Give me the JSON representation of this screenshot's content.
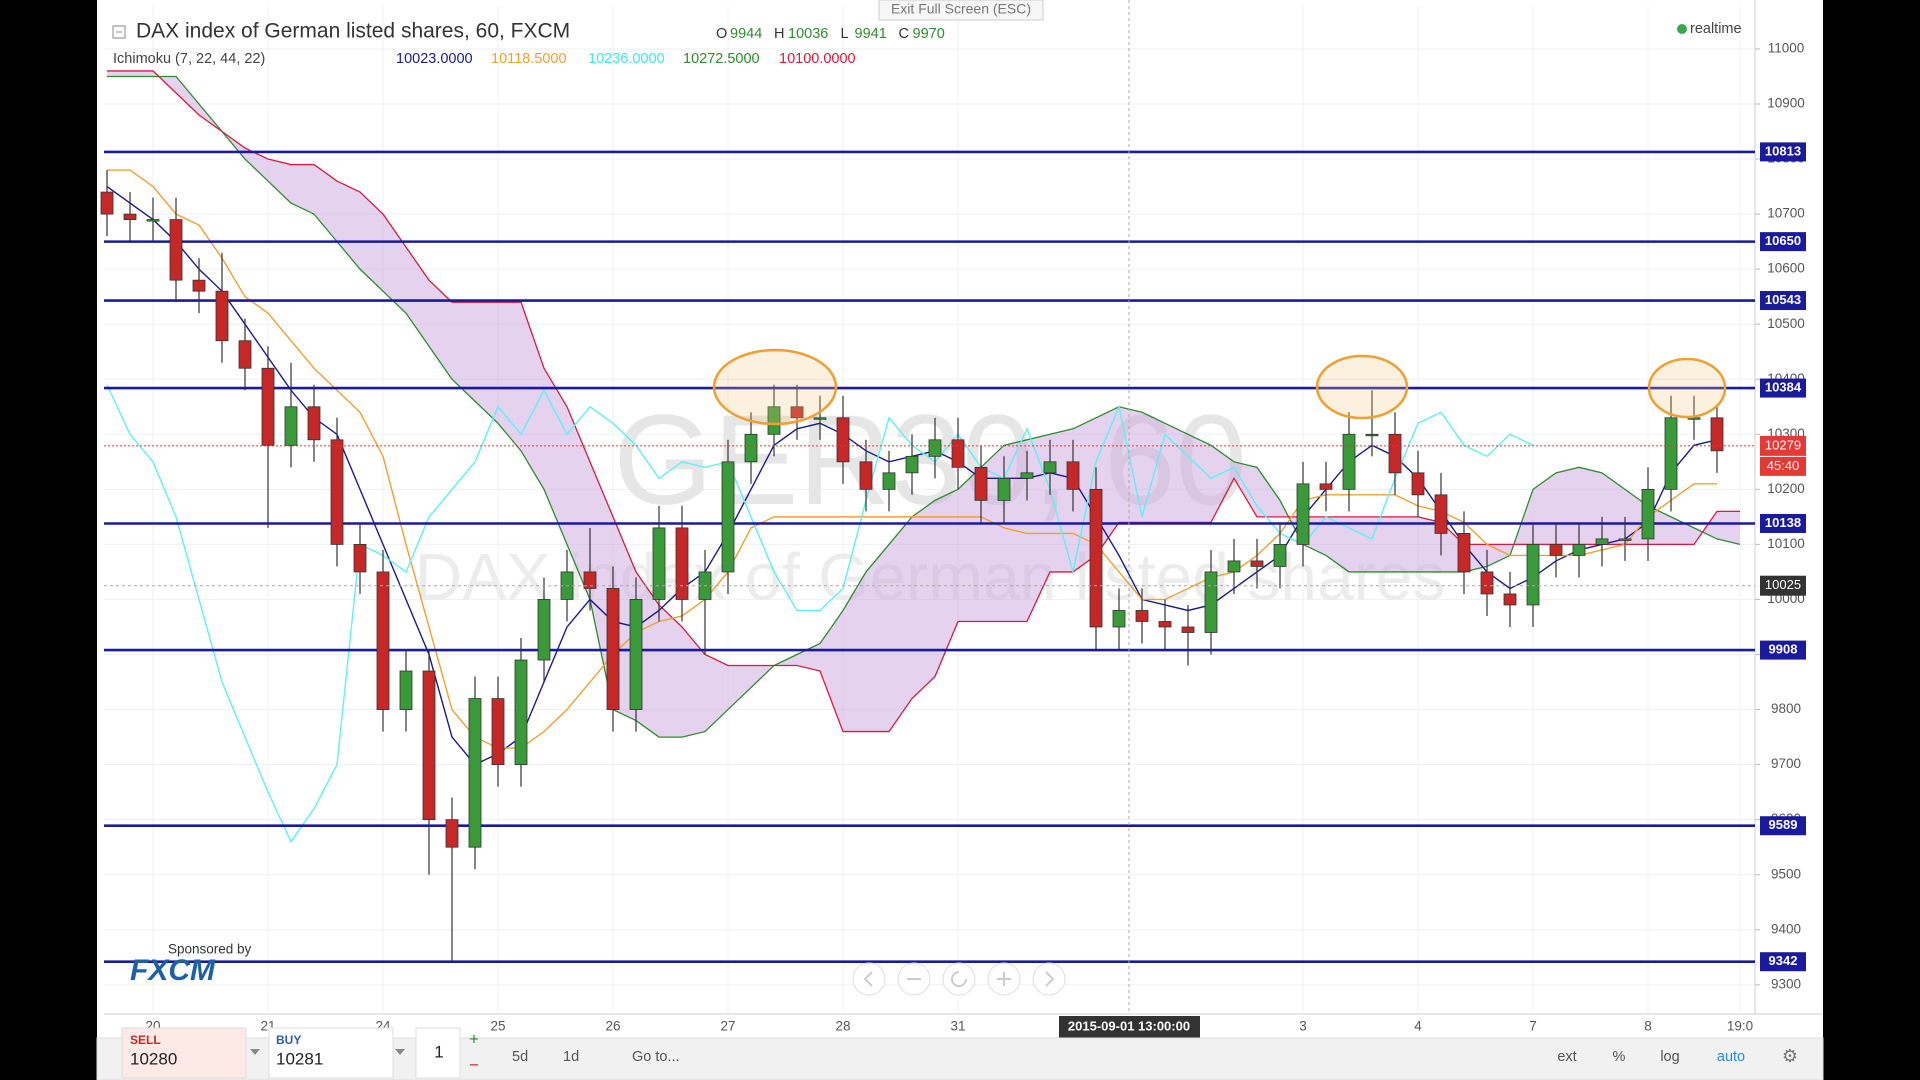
{
  "header": {
    "title": "DAX index of German listed shares, 60, FXCM",
    "exit_full_screen": "Exit Full Screen (ESC)",
    "realtime": "realtime",
    "ohlc": [
      {
        "key": "O",
        "value": "9944"
      },
      {
        "key": "H",
        "value": "10036"
      },
      {
        "key": "L",
        "value": "9941"
      },
      {
        "key": "C",
        "value": "9970"
      }
    ],
    "indicator": "Ichimoku (7, 22, 44, 22)",
    "indicator_values": [
      {
        "value": "10023.0000",
        "color": "#1a1a8c"
      },
      {
        "value": "10118.5000",
        "color": "#f0a030"
      },
      {
        "value": "10236.0000",
        "color": "#3ee8f0"
      },
      {
        "value": "10272.5000",
        "color": "#2e8b2e"
      },
      {
        "value": "10100.0000",
        "color": "#d81b3c"
      }
    ]
  },
  "watermark": {
    "symbol": "GER30, 60",
    "description": "DAX index of German listed shares"
  },
  "sponsor": {
    "label": "Sponsored by",
    "brand": "FXCM"
  },
  "toolbar": {
    "sell_label": "SELL",
    "sell_price": "10280",
    "buy_label": "BUY",
    "buy_price": "10281",
    "quantity": "1",
    "plus": "+",
    "minus": "−",
    "ranges": [
      "5d",
      "1d",
      "Go to..."
    ],
    "options": [
      "ext",
      "%",
      "log",
      "auto"
    ]
  },
  "chart_data": {
    "type": "candlestick",
    "categories": [
      null,
      null,
      "20",
      null,
      null,
      null,
      null,
      "21",
      null,
      null,
      null,
      null,
      "24",
      null,
      null,
      null,
      null,
      "25",
      null,
      null,
      null,
      null,
      "26",
      null,
      null,
      null,
      null,
      "27",
      null,
      null,
      null,
      null,
      "28",
      null,
      null,
      null,
      null,
      "31",
      null,
      null,
      null,
      null,
      null,
      null,
      null,
      null,
      null,
      null,
      null,
      null,
      null,
      null,
      "3",
      null,
      null,
      null,
      null,
      "4",
      null,
      null,
      null,
      null,
      "7",
      null,
      null,
      null,
      null,
      "8",
      null,
      null,
      null,
      "19:0"
    ],
    "open": [
      10740,
      10700,
      10690,
      10690,
      10580,
      10560,
      10470,
      10420,
      10280,
      10350,
      10290,
      10100,
      10050,
      9800,
      9870,
      9600,
      9550,
      9820,
      9700,
      9890,
      10000,
      10050,
      10020,
      9800,
      10000,
      10130,
      10000,
      10050,
      10250,
      10300,
      10350,
      10330,
      10330,
      10250,
      10200,
      10230,
      10260,
      10290,
      10240,
      10180,
      10220,
      10230,
      10250,
      10200,
      9950,
      9980,
      9960,
      9950,
      9940,
      10050,
      10070,
      10060,
      10100,
      10210,
      10200,
      10300,
      10300,
      10230,
      10190,
      10120,
      10050,
      10010,
      9990,
      10100,
      10080,
      10100,
      10110,
      10110,
      10200,
      10330,
      10330,
      null
    ],
    "high": [
      10780,
      10740,
      10730,
      10730,
      10620,
      10630,
      10510,
      10460,
      10430,
      10390,
      10330,
      10140,
      10090,
      9910,
      9910,
      9640,
      9860,
      9860,
      9930,
      10040,
      10090,
      10130,
      10060,
      10040,
      10170,
      10170,
      10090,
      10290,
      10340,
      10390,
      10390,
      10370,
      10370,
      10290,
      10270,
      10300,
      10330,
      10330,
      10280,
      10260,
      10270,
      10290,
      10290,
      10240,
      10020,
      10020,
      10000,
      9990,
      10090,
      10110,
      10110,
      10140,
      10250,
      10250,
      10340,
      10380,
      10340,
      10270,
      10230,
      10160,
      10090,
      10050,
      10140,
      10140,
      10140,
      10150,
      10150,
      10240,
      10370,
      10370,
      10350,
      null
    ],
    "low": [
      10660,
      10650,
      10650,
      10540,
      10520,
      10430,
      10380,
      10130,
      10240,
      10250,
      10060,
      10010,
      9760,
      9760,
      9500,
      9342,
      9510,
      9660,
      9660,
      9850,
      9960,
      9980,
      9760,
      9760,
      9960,
      9960,
      9900,
      10010,
      10210,
      10260,
      10290,
      10290,
      10210,
      10160,
      10160,
      10190,
      10220,
      10200,
      10140,
      10140,
      10180,
      10190,
      10160,
      9910,
      9910,
      9920,
      9910,
      9880,
      9900,
      10010,
      10020,
      10020,
      10060,
      10160,
      10160,
      10260,
      10190,
      10150,
      10080,
      10010,
      9970,
      9950,
      9950,
      10040,
      10040,
      10060,
      10070,
      10070,
      10160,
      10290,
      10230,
      null
    ],
    "close": [
      10700,
      10690,
      10690,
      10580,
      10560,
      10470,
      10420,
      10280,
      10350,
      10290,
      10100,
      10050,
      9800,
      9870,
      9600,
      9550,
      9820,
      9700,
      9890,
      10000,
      10050,
      10020,
      9800,
      10000,
      10130,
      10000,
      10050,
      10250,
      10300,
      10350,
      10330,
      10330,
      10250,
      10200,
      10230,
      10260,
      10290,
      10240,
      10180,
      10220,
      10230,
      10250,
      10200,
      9950,
      9980,
      9960,
      9950,
      9940,
      10050,
      10070,
      10060,
      10100,
      10210,
      10200,
      10300,
      10300,
      10230,
      10190,
      10120,
      10050,
      10010,
      9990,
      10100,
      10080,
      10100,
      10110,
      10110,
      10200,
      10330,
      10330,
      10270,
      null
    ],
    "up_color": "#3a9a3a",
    "down_color": "#c62828",
    "cloud": {
      "color": "#c9a6dd",
      "span_a": {
        "color": "#2e8b2e",
        "values": [
          10950,
          10950,
          10950,
          10950,
          10900,
          10850,
          10800,
          10760,
          10720,
          10700,
          10650,
          10600,
          10560,
          10520,
          10460,
          10400,
          10360,
          10320,
          10270,
          10200,
          10100,
          10000,
          9800,
          9780,
          9750,
          9750,
          9760,
          9800,
          9840,
          9880,
          9900,
          9920,
          9980,
          10050,
          10100,
          10150,
          10180,
          10200,
          10240,
          10280,
          10290,
          10300,
          10310,
          10330,
          10350,
          10340,
          10320,
          10300,
          10280,
          10250,
          10240,
          10180,
          10100,
          10080,
          10050,
          10050,
          10050,
          10050,
          10050,
          10050,
          10060,
          10080,
          10200,
          10230,
          10240,
          10230,
          10200,
          10170,
          10150,
          10130,
          10110,
          10100
        ]
      },
      "span_b": {
        "color": "#d81b3c",
        "values": [
          10960,
          10960,
          10960,
          10920,
          10880,
          10850,
          10820,
          10800,
          10790,
          10790,
          10760,
          10740,
          10700,
          10640,
          10580,
          10540,
          10540,
          10540,
          10540,
          10420,
          10350,
          10250,
          10150,
          10050,
          9990,
          9950,
          9900,
          9880,
          9880,
          9880,
          9880,
          9870,
          9760,
          9760,
          9760,
          9820,
          9860,
          9960,
          9960,
          9960,
          9960,
          10050,
          10050,
          10080,
          10140,
          10140,
          10140,
          10140,
          10140,
          10220,
          10150,
          10150,
          10150,
          10150,
          10150,
          10150,
          10150,
          10150,
          10140,
          10100,
          10100,
          10100,
          10100,
          10100,
          10100,
          10100,
          10100,
          10100,
          10100,
          10100,
          10160,
          10160
        ]
      }
    },
    "series": [
      {
        "color": "#1a1a8c",
        "values": [
          10750,
          10720,
          10690,
          10650,
          10600,
          10560,
          10500,
          10440,
          10380,
          10330,
          10300,
          10200,
          10100,
          10000,
          9900,
          9750,
          9700,
          9720,
          9750,
          9850,
          9950,
          10000,
          9960,
          9950,
          9980,
          10020,
          10050,
          10120,
          10200,
          10280,
          10310,
          10320,
          10300,
          10270,
          10250,
          10260,
          10270,
          10250,
          10220,
          10220,
          10220,
          10230,
          10220,
          10150,
          10080,
          10000,
          9990,
          9980,
          9990,
          10020,
          10050,
          10080,
          10150,
          10200,
          10250,
          10280,
          10260,
          10220,
          10160,
          10100,
          10050,
          10020,
          10040,
          10070,
          10090,
          10100,
          10110,
          10140,
          10230,
          10280,
          10290,
          null
        ]
      },
      {
        "color": "#f0a030",
        "values": [
          10780,
          10780,
          10750,
          10700,
          10680,
          10620,
          10550,
          10520,
          10470,
          10420,
          10380,
          10340,
          10260,
          10100,
          9950,
          9800,
          9750,
          9730,
          9730,
          9760,
          9800,
          9850,
          9900,
          9940,
          9960,
          9970,
          10000,
          10050,
          10130,
          10150,
          10150,
          10150,
          10150,
          10150,
          10150,
          10150,
          10150,
          10150,
          10150,
          10130,
          10120,
          10120,
          10120,
          10100,
          10050,
          10000,
          10000,
          10020,
          10040,
          10050,
          10080,
          10120,
          10180,
          10190,
          10190,
          10190,
          10190,
          10170,
          10160,
          10140,
          10100,
          10080,
          10080,
          10080,
          10080,
          10090,
          10100,
          10150,
          10180,
          10210,
          10210,
          null
        ]
      },
      {
        "color": "#5ef0f5",
        "values": [
          10390,
          10300,
          10250,
          10150,
          10000,
          9850,
          9750,
          9650,
          9560,
          9620,
          9700,
          10100,
          10080,
          10050,
          10150,
          10200,
          10250,
          10350,
          10300,
          10380,
          10300,
          10350,
          10320,
          10280,
          10220,
          10250,
          10240,
          10250,
          10150,
          10050,
          9980,
          9980,
          10020,
          10180,
          10330,
          10280,
          10250,
          10300,
          10240,
          10220,
          10310,
          10200,
          10050,
          10250,
          10350,
          10150,
          10300,
          10260,
          10220,
          10240,
          10170,
          10120,
          10100,
          10150,
          10130,
          10110,
          10220,
          10320,
          10340,
          10280,
          10260,
          10300,
          10280,
          null,
          null,
          null,
          null,
          null,
          null,
          null,
          null,
          null
        ]
      }
    ],
    "levels": [
      10813,
      10650,
      10543,
      10384,
      10138,
      9908,
      9589,
      9342
    ],
    "level_color": "#1a1a9c",
    "last_price": 10279,
    "last_color": "#e53935",
    "countdown": "45:40",
    "crosshair_price": 10025,
    "crosshair_time": "2015-09-01 13:00:00",
    "ylim": [
      9247,
      11078
    ],
    "yticks": [
      9300,
      9400,
      9500,
      9600,
      9700,
      9800,
      9900,
      10000,
      10100,
      10200,
      10300,
      10400,
      10500,
      10600,
      10700,
      10800,
      10900,
      11000
    ],
    "grid": true
  }
}
